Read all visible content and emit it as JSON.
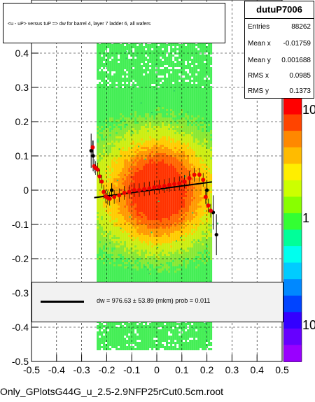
{
  "title": "<u - uP>       versus  tuP =>  dw for barrel 4, layer 7 ladder 6, all wafers",
  "stats": {
    "name": "dutuP7006",
    "rows": [
      {
        "label": "Entries",
        "value": "88262"
      },
      {
        "label": "Mean x",
        "value": "-0.01759"
      },
      {
        "label": "Mean y",
        "value": "0.001688"
      },
      {
        "label": "RMS x",
        "value": "0.0985"
      },
      {
        "label": "RMS y",
        "value": "0.1373"
      }
    ]
  },
  "fit_label": "dw =  976.63 ± 53.89 (mkm) prob = 0.011",
  "footer": "Only_GPlotsG44G_u_2.5-2.9NFP25rCut0.5cm.root",
  "chart_data": {
    "type": "scatter",
    "title": "<u - uP>       versus  tuP =>  dw for barrel 4, layer 7 ladder 6, all wafers",
    "xlim": [
      -0.5,
      0.5
    ],
    "ylim": [
      -0.5,
      0.5
    ],
    "x_ticks": [
      -0.5,
      -0.4,
      -0.3,
      -0.2,
      -0.1,
      0,
      0.1,
      0.2,
      0.3,
      0.4,
      0.5
    ],
    "y_ticks": [
      -0.5,
      -0.4,
      -0.3,
      -0.2,
      -0.1,
      0,
      0.1,
      0.2,
      0.3,
      0.4
    ],
    "grid": true,
    "colorbar": {
      "ticks": [
        "10",
        "1",
        "10"
      ],
      "scale": "log"
    },
    "histogram_band": {
      "x_range": [
        -0.24,
        0.22
      ],
      "hot_center": [
        0.0,
        0.0
      ]
    },
    "red_points": [
      {
        "x": -0.256,
        "y": 0.125
      },
      {
        "x": -0.25,
        "y": 0.07
      },
      {
        "x": -0.244,
        "y": 0.065
      },
      {
        "x": -0.236,
        "y": 0.06
      },
      {
        "x": -0.228,
        "y": 0.04
      },
      {
        "x": -0.22,
        "y": 0.025
      },
      {
        "x": -0.212,
        "y": -0.005
      },
      {
        "x": -0.204,
        "y": -0.018
      },
      {
        "x": -0.196,
        "y": -0.022
      },
      {
        "x": -0.188,
        "y": -0.025
      },
      {
        "x": -0.17,
        "y": -0.02
      },
      {
        "x": -0.15,
        "y": -0.015
      },
      {
        "x": -0.13,
        "y": -0.008
      },
      {
        "x": -0.11,
        "y": -0.005
      },
      {
        "x": -0.09,
        "y": 0.0
      },
      {
        "x": -0.07,
        "y": 0.0
      },
      {
        "x": -0.05,
        "y": 0.003
      },
      {
        "x": -0.03,
        "y": 0.005
      },
      {
        "x": -0.01,
        "y": 0.008
      },
      {
        "x": 0.01,
        "y": 0.01
      },
      {
        "x": 0.03,
        "y": 0.012
      },
      {
        "x": 0.05,
        "y": 0.015
      },
      {
        "x": 0.07,
        "y": 0.018
      },
      {
        "x": 0.09,
        "y": 0.02
      },
      {
        "x": 0.11,
        "y": 0.025
      },
      {
        "x": 0.13,
        "y": 0.035
      },
      {
        "x": 0.15,
        "y": 0.045
      },
      {
        "x": 0.17,
        "y": 0.045
      },
      {
        "x": 0.185,
        "y": 0.03
      },
      {
        "x": 0.195,
        "y": -0.02
      },
      {
        "x": 0.205,
        "y": -0.045
      },
      {
        "x": 0.215,
        "y": -0.06
      }
    ],
    "black_points": [
      {
        "x": -0.262,
        "y": 0.115,
        "err": 0.05
      },
      {
        "x": -0.254,
        "y": 0.1,
        "err": 0.045
      },
      {
        "x": -0.18,
        "y": 0.0,
        "err": 0.02
      },
      {
        "x": 0.2,
        "y": 0.0,
        "err": 0.03
      },
      {
        "x": 0.225,
        "y": -0.065,
        "err": 0.05
      },
      {
        "x": 0.238,
        "y": -0.13,
        "err": 0.06
      }
    ],
    "fit_line": {
      "x": [
        -0.25,
        0.22
      ],
      "y": [
        -0.022,
        0.024
      ]
    }
  }
}
